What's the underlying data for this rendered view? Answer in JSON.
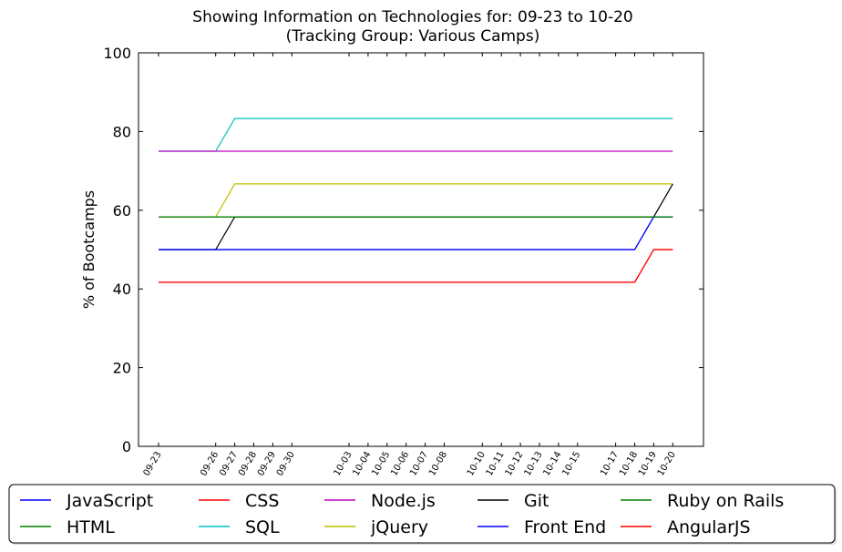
{
  "chart_data": {
    "type": "line",
    "title": "Showing Information on Technologies for: 09-23 to 10-20",
    "subtitle": "(Tracking Group: Various Camps)",
    "xlabel": "",
    "ylabel": "% of Bootcamps",
    "ylim": [
      0,
      100
    ],
    "yticks": [
      0,
      20,
      40,
      60,
      80,
      100
    ],
    "x": [
      "09-23",
      "09-26",
      "09-27",
      "09-28",
      "09-29",
      "09-30",
      "10-03",
      "10-04",
      "10-05",
      "10-06",
      "10-07",
      "10-08",
      "10-10",
      "10-11",
      "10-12",
      "10-13",
      "10-14",
      "10-15",
      "10-17",
      "10-18",
      "10-19",
      "10-20"
    ],
    "x_days": [
      0,
      3,
      4,
      5,
      6,
      7,
      10,
      11,
      12,
      13,
      14,
      15,
      17,
      18,
      19,
      20,
      21,
      22,
      24,
      25,
      26,
      27
    ],
    "grid": false,
    "legend_position": "bottom",
    "legend_columns": 5,
    "series": [
      {
        "name": "JavaScript",
        "color": "#0000ff",
        "values": [
          50,
          50,
          50,
          50,
          50,
          50,
          50,
          50,
          50,
          50,
          50,
          50,
          50,
          50,
          50,
          50,
          50,
          50,
          50,
          50,
          58.3,
          58.3
        ]
      },
      {
        "name": "HTML",
        "color": "#008000",
        "values": [
          58.3,
          58.3,
          58.3,
          58.3,
          58.3,
          58.3,
          58.3,
          58.3,
          58.3,
          58.3,
          58.3,
          58.3,
          58.3,
          58.3,
          58.3,
          58.3,
          58.3,
          58.3,
          58.3,
          58.3,
          58.3,
          58.3
        ]
      },
      {
        "name": "CSS",
        "color": "#ff0000",
        "values": [
          41.7,
          41.7,
          41.7,
          41.7,
          41.7,
          41.7,
          41.7,
          41.7,
          41.7,
          41.7,
          41.7,
          41.7,
          41.7,
          41.7,
          41.7,
          41.7,
          41.7,
          41.7,
          41.7,
          41.7,
          50,
          50
        ]
      },
      {
        "name": "SQL",
        "color": "#00bfbf",
        "values": [
          75,
          75,
          83.3,
          83.3,
          83.3,
          83.3,
          83.3,
          83.3,
          83.3,
          83.3,
          83.3,
          83.3,
          83.3,
          83.3,
          83.3,
          83.3,
          83.3,
          83.3,
          83.3,
          83.3,
          83.3,
          83.3
        ]
      },
      {
        "name": "Node.js",
        "color": "#bf00bf",
        "values": [
          75,
          75,
          75,
          75,
          75,
          75,
          75,
          75,
          75,
          75,
          75,
          75,
          75,
          75,
          75,
          75,
          75,
          75,
          75,
          75,
          75,
          75
        ]
      },
      {
        "name": "jQuery",
        "color": "#bfbf00",
        "values": [
          58.3,
          58.3,
          66.7,
          66.7,
          66.7,
          66.7,
          66.7,
          66.7,
          66.7,
          66.7,
          66.7,
          66.7,
          66.7,
          66.7,
          66.7,
          66.7,
          66.7,
          66.7,
          66.7,
          66.7,
          66.7,
          66.7
        ]
      },
      {
        "name": "Git",
        "color": "#000000",
        "values": [
          50,
          50,
          58.3,
          58.3,
          58.3,
          58.3,
          58.3,
          58.3,
          58.3,
          58.3,
          58.3,
          58.3,
          58.3,
          58.3,
          58.3,
          58.3,
          58.3,
          58.3,
          58.3,
          58.3,
          58.3,
          66.7
        ]
      },
      {
        "name": "Front End",
        "color": "#0000ff",
        "values": [
          50,
          50,
          50,
          50,
          50,
          50,
          50,
          50,
          50,
          50,
          50,
          50,
          50,
          50,
          50,
          50,
          50,
          50,
          50,
          50,
          58.3,
          58.3
        ]
      },
      {
        "name": "Ruby on Rails",
        "color": "#008000",
        "values": [
          58.3,
          58.3,
          58.3,
          58.3,
          58.3,
          58.3,
          58.3,
          58.3,
          58.3,
          58.3,
          58.3,
          58.3,
          58.3,
          58.3,
          58.3,
          58.3,
          58.3,
          58.3,
          58.3,
          58.3,
          58.3,
          58.3
        ]
      },
      {
        "name": "AngularJS",
        "color": "#ff0000",
        "values": [
          41.7,
          41.7,
          41.7,
          41.7,
          41.7,
          41.7,
          41.7,
          41.7,
          41.7,
          41.7,
          41.7,
          41.7,
          41.7,
          41.7,
          41.7,
          41.7,
          41.7,
          41.7,
          41.7,
          41.7,
          50,
          50
        ]
      }
    ]
  }
}
